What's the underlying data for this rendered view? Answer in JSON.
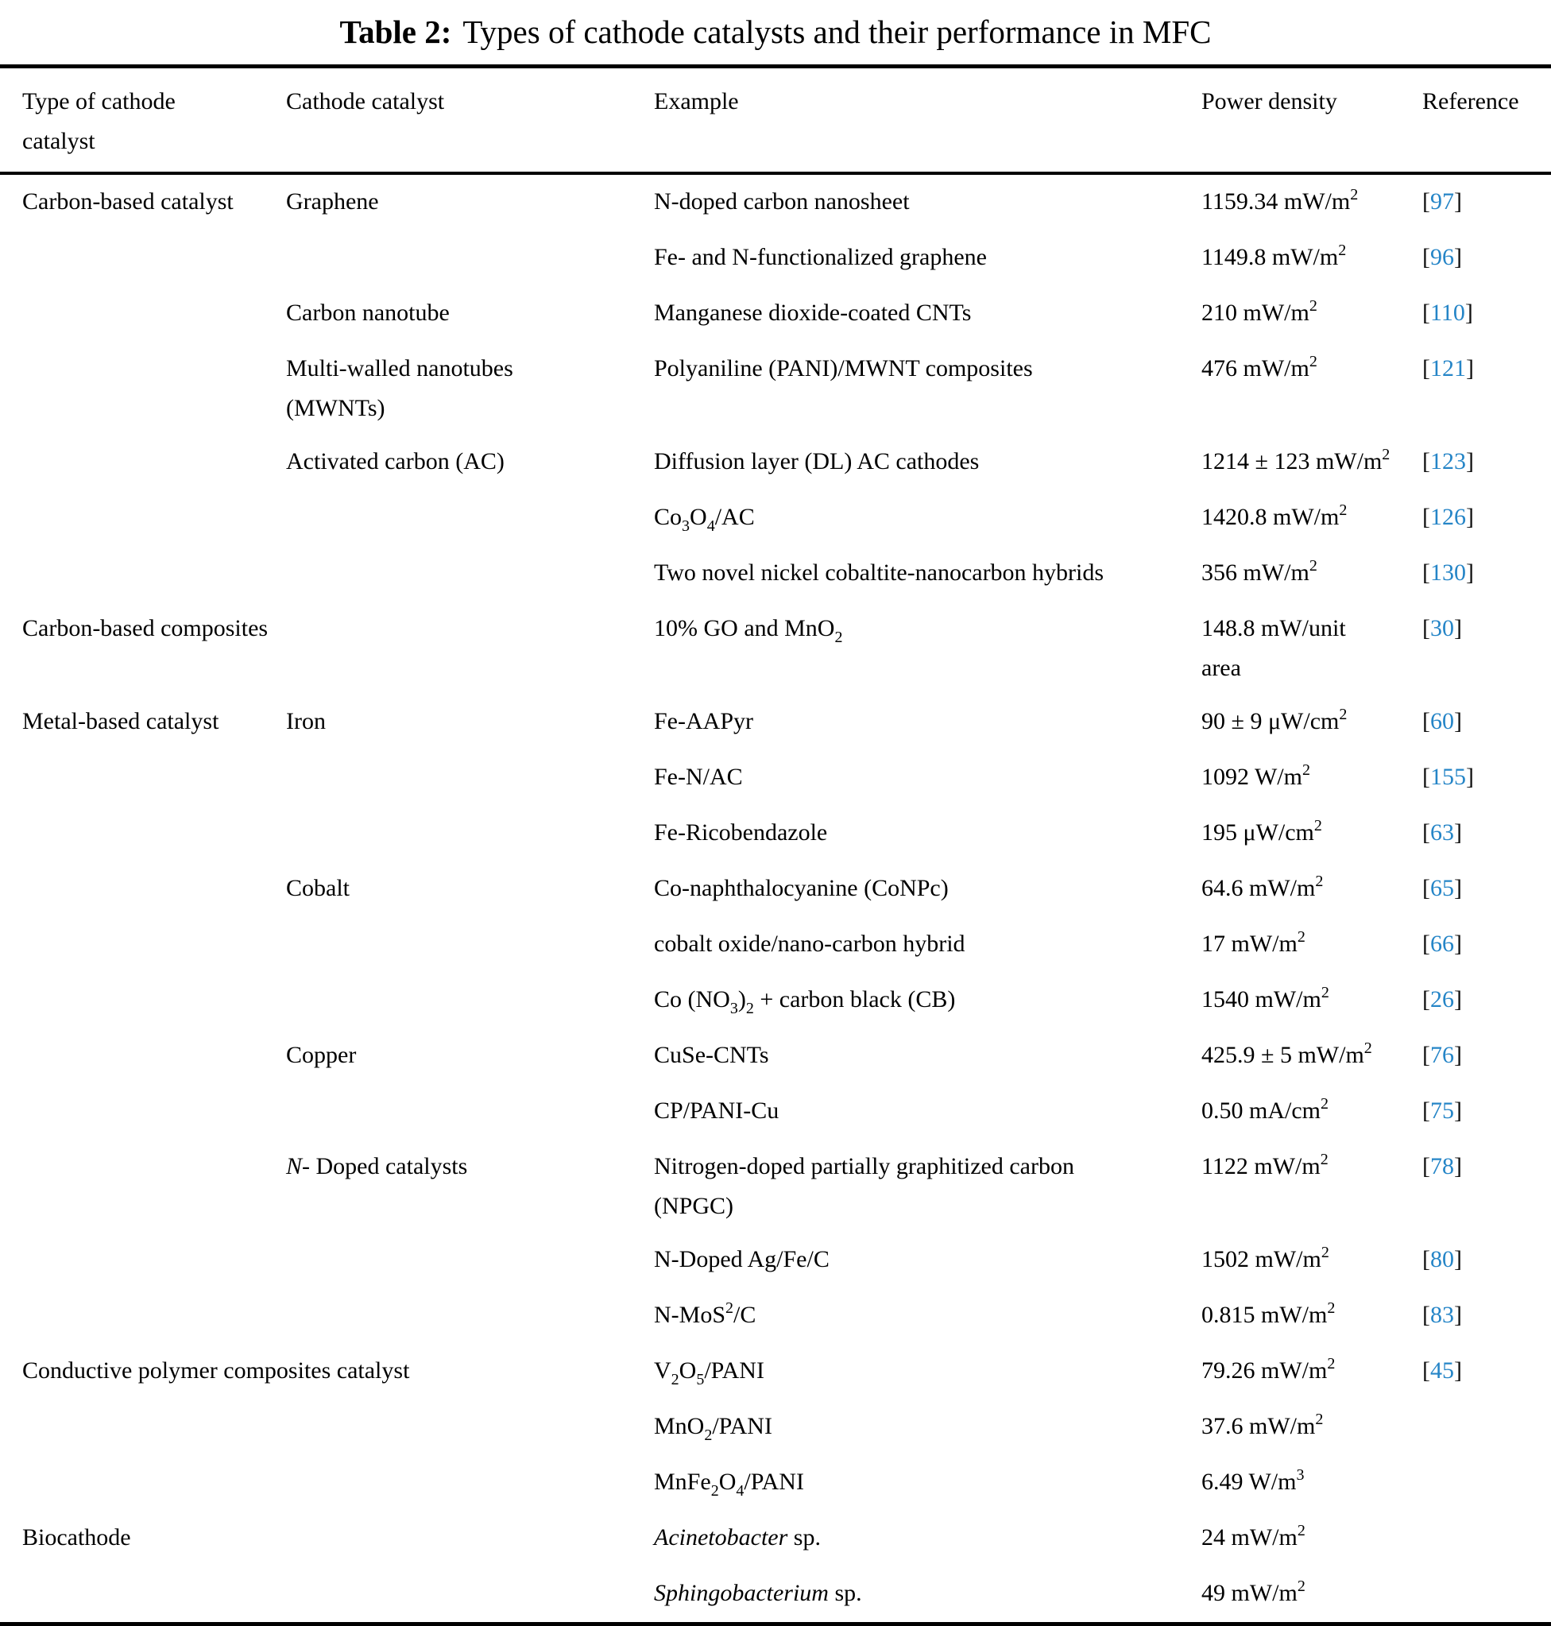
{
  "title": {
    "label": "Table 2:",
    "caption": "Types of cathode catalysts and their performance in MFC"
  },
  "columns": [
    "Type of cathode catalyst",
    "Cathode catalyst",
    "Example",
    "Power density",
    "Reference"
  ],
  "link_color": "#2585c7",
  "rows": [
    {
      "type": [
        [
          "",
          "Carbon-based catalyst"
        ]
      ],
      "catalyst": [
        [
          "",
          "Graphene"
        ]
      ],
      "example": [
        [
          "",
          "N-doped carbon nanosheet"
        ]
      ],
      "power": [
        [
          "",
          "1159.34 mW/m"
        ],
        [
          "sup",
          "2"
        ]
      ],
      "ref": "97"
    },
    {
      "type": null,
      "catalyst": null,
      "example": [
        [
          "",
          "Fe- and N-functionalized graphene"
        ]
      ],
      "power": [
        [
          "",
          "1149.8 mW/m"
        ],
        [
          "sup",
          "2"
        ]
      ],
      "ref": "96"
    },
    {
      "type": null,
      "catalyst": [
        [
          "",
          "Carbon nanotube"
        ]
      ],
      "example": [
        [
          "",
          "Manganese dioxide-coated CNTs"
        ]
      ],
      "power": [
        [
          "",
          "210 mW/m"
        ],
        [
          "sup",
          "2"
        ]
      ],
      "ref": "110"
    },
    {
      "type": null,
      "catalyst": [
        [
          "",
          "Multi-walled nanotubes"
        ],
        [
          "br",
          ""
        ],
        [
          "",
          "(MWNTs)"
        ]
      ],
      "example": [
        [
          "",
          "Polyaniline (PANI)/MWNT composites"
        ]
      ],
      "power": [
        [
          "",
          "476 mW/m"
        ],
        [
          "sup",
          "2"
        ]
      ],
      "ref": "121"
    },
    {
      "type": null,
      "catalyst": [
        [
          "",
          "Activated carbon (AC)"
        ]
      ],
      "example": [
        [
          "",
          "Diffusion layer (DL) AC cathodes"
        ]
      ],
      "power": [
        [
          "",
          "1214 ± 123 mW/m"
        ],
        [
          "sup",
          "2"
        ]
      ],
      "ref": "123"
    },
    {
      "type": null,
      "catalyst": null,
      "example": [
        [
          "",
          "Co"
        ],
        [
          "sub",
          "3"
        ],
        [
          "",
          "O"
        ],
        [
          "sub",
          "4"
        ],
        [
          "",
          "/AC"
        ]
      ],
      "power": [
        [
          "",
          "1420.8 mW/m"
        ],
        [
          "sup",
          "2"
        ]
      ],
      "ref": "126"
    },
    {
      "type": null,
      "catalyst": null,
      "example": [
        [
          "",
          "Two novel nickel cobaltite-nanocarbon hybrids"
        ]
      ],
      "power": [
        [
          "",
          "356 mW/m"
        ],
        [
          "sup",
          "2"
        ]
      ],
      "ref": "130"
    },
    {
      "type": [
        [
          "",
          "Carbon-based composites"
        ]
      ],
      "catalyst": null,
      "example": [
        [
          "",
          "10% GO and MnO"
        ],
        [
          "sub",
          "2"
        ]
      ],
      "power": [
        [
          "",
          "148.8 mW/unit"
        ],
        [
          "br",
          ""
        ],
        [
          "",
          "area"
        ]
      ],
      "ref": "30"
    },
    {
      "type": [
        [
          "",
          "Metal-based catalyst"
        ]
      ],
      "catalyst": [
        [
          "",
          "Iron"
        ]
      ],
      "example": [
        [
          "",
          "Fe-AAPyr"
        ]
      ],
      "power": [
        [
          "",
          "90 ± 9 μW/cm"
        ],
        [
          "sup",
          "2"
        ]
      ],
      "ref": "60"
    },
    {
      "type": null,
      "catalyst": null,
      "example": [
        [
          "",
          "Fe-N/AC"
        ]
      ],
      "power": [
        [
          "",
          "1092 W/m"
        ],
        [
          "sup",
          "2"
        ]
      ],
      "ref": "155"
    },
    {
      "type": null,
      "catalyst": null,
      "example": [
        [
          "",
          "Fe-Ricobendazole"
        ]
      ],
      "power": [
        [
          "",
          "195 μW/cm"
        ],
        [
          "sup",
          "2"
        ]
      ],
      "ref": "63"
    },
    {
      "type": null,
      "catalyst": [
        [
          "",
          "Cobalt"
        ]
      ],
      "example": [
        [
          "",
          "Co-naphthalocyanine (CoNPc)"
        ]
      ],
      "power": [
        [
          "",
          "64.6 mW/m"
        ],
        [
          "sup",
          "2"
        ]
      ],
      "ref": "65"
    },
    {
      "type": null,
      "catalyst": null,
      "example": [
        [
          "",
          "cobalt oxide/nano-carbon hybrid"
        ]
      ],
      "power": [
        [
          "",
          "17 mW/m"
        ],
        [
          "sup",
          "2"
        ]
      ],
      "ref": "66"
    },
    {
      "type": null,
      "catalyst": null,
      "example": [
        [
          "",
          "Co (NO"
        ],
        [
          "sub",
          "3"
        ],
        [
          "",
          ")"
        ],
        [
          "sub",
          "2"
        ],
        [
          "",
          " + carbon black (CB)"
        ]
      ],
      "power": [
        [
          "",
          "1540 mW/m"
        ],
        [
          "sup",
          "2"
        ]
      ],
      "ref": "26"
    },
    {
      "type": null,
      "catalyst": [
        [
          "",
          "Copper"
        ]
      ],
      "example": [
        [
          "",
          "CuSe-CNTs"
        ]
      ],
      "power": [
        [
          "",
          "425.9 ± 5 mW/m"
        ],
        [
          "sup",
          "2"
        ]
      ],
      "ref": "76"
    },
    {
      "type": null,
      "catalyst": null,
      "example": [
        [
          "",
          "CP/PANI-Cu"
        ]
      ],
      "power": [
        [
          "",
          "0.50 mA/cm"
        ],
        [
          "sup",
          "2"
        ]
      ],
      "ref": "75"
    },
    {
      "type": null,
      "catalyst": [
        [
          "i",
          "N-"
        ],
        [
          "",
          " Doped catalysts"
        ]
      ],
      "example": [
        [
          "",
          "Nitrogen-doped partially graphitized carbon"
        ],
        [
          "br",
          ""
        ],
        [
          "",
          "(NPGC)"
        ]
      ],
      "power": [
        [
          "",
          "1122 mW/m"
        ],
        [
          "sup",
          "2"
        ]
      ],
      "ref": "78"
    },
    {
      "type": null,
      "catalyst": null,
      "example": [
        [
          "",
          "N-Doped Ag/Fe/C"
        ]
      ],
      "power": [
        [
          "",
          "1502 mW/m"
        ],
        [
          "sup",
          "2"
        ]
      ],
      "ref": "80"
    },
    {
      "type": null,
      "catalyst": null,
      "example": [
        [
          "",
          "N-MoS"
        ],
        [
          "sup",
          "2"
        ],
        [
          "",
          "/C"
        ]
      ],
      "power": [
        [
          "",
          "0.815 mW/m"
        ],
        [
          "sup",
          "2"
        ]
      ],
      "ref": "83"
    },
    {
      "type": [
        [
          "",
          "Conductive polymer composites catalyst"
        ]
      ],
      "type_colspan": 2,
      "example": [
        [
          "",
          "V"
        ],
        [
          "sub",
          "2"
        ],
        [
          "",
          "O"
        ],
        [
          "sub",
          "5"
        ],
        [
          "",
          "/PANI"
        ]
      ],
      "power": [
        [
          "",
          "79.26 mW/m"
        ],
        [
          "sup",
          "2"
        ]
      ],
      "ref": "45"
    },
    {
      "type": null,
      "catalyst": null,
      "example": [
        [
          "",
          "MnO"
        ],
        [
          "sub",
          "2"
        ],
        [
          "",
          "/PANI"
        ]
      ],
      "power": [
        [
          "",
          "37.6 mW/m"
        ],
        [
          "sup",
          "2"
        ]
      ],
      "ref": null
    },
    {
      "type": null,
      "catalyst": null,
      "example": [
        [
          "",
          "MnFe"
        ],
        [
          "sub",
          "2"
        ],
        [
          "",
          "O"
        ],
        [
          "sub",
          "4"
        ],
        [
          "",
          "/PANI"
        ]
      ],
      "power": [
        [
          "",
          "6.49 W/m"
        ],
        [
          "sup",
          "3"
        ]
      ],
      "ref": null
    },
    {
      "type": [
        [
          "",
          "Biocathode"
        ]
      ],
      "catalyst": null,
      "example": [
        [
          "i",
          "Acinetobacter"
        ],
        [
          "",
          " sp."
        ]
      ],
      "power": [
        [
          "",
          "24 mW/m"
        ],
        [
          "sup",
          "2"
        ]
      ],
      "ref": null
    },
    {
      "type": null,
      "catalyst": null,
      "example": [
        [
          "i",
          "Sphingobacterium"
        ],
        [
          "",
          " sp."
        ]
      ],
      "power": [
        [
          "",
          "49 mW/m"
        ],
        [
          "sup",
          "2"
        ]
      ],
      "ref": null
    }
  ]
}
